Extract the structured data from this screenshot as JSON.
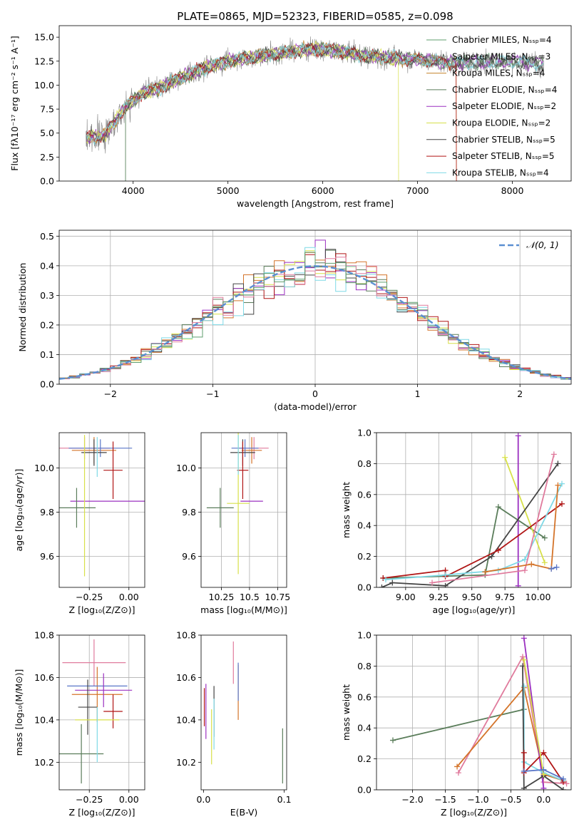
{
  "chart_data": [
    {
      "id": "spectrum",
      "type": "line",
      "title": "PLATE=0865, MJD=52323, FIBERID=0585, z=0.098",
      "xlabel": "wavelength [Angstrom, rest frame]",
      "ylabel": "Flux [fλ10⁻¹⁷ erg cm⁻² s⁻¹ A⁻¹]",
      "xlim": [
        3220,
        8620
      ],
      "ylim": [
        0,
        16.2
      ],
      "xticks": [
        4000,
        5000,
        6000,
        7000,
        8000
      ],
      "yticks": [
        0.0,
        2.5,
        5.0,
        7.5,
        10.0,
        12.5,
        15.0
      ],
      "legend_position": "right",
      "data_envelope": {
        "x": [
          3500,
          3700,
          3900,
          4100,
          4300,
          4500,
          4700,
          5000,
          5300,
          5600,
          5900,
          6200,
          6500,
          6800,
          7100,
          7400,
          7700,
          8000,
          8300
        ],
        "y": [
          4.5,
          4.8,
          7.5,
          9.2,
          9.8,
          10.8,
          11.6,
          12.5,
          13.0,
          13.4,
          13.8,
          13.5,
          13.0,
          12.8,
          12.6,
          12.3,
          12.4,
          12.5,
          12.2
        ]
      },
      "series": [
        {
          "name": "Chabrier MILES, N_SSP=4",
          "color": "#5f9e6e"
        },
        {
          "name": "Salpeter MILES, N_SSP=3",
          "color": "#999999"
        },
        {
          "name": "Kroupa MILES, N_SSP=4",
          "color": "#c5832c"
        },
        {
          "name": "Chabrier ELODIE, N_SSP=4",
          "color": "#5a7d5a"
        },
        {
          "name": "Salpeter ELODIE, N_SSP=2",
          "color": "#9b30c0"
        },
        {
          "name": "Kroupa ELODIE, N_SSP=2",
          "color": "#d7e04a"
        },
        {
          "name": "Chabrier STELIB, N_SSP=5",
          "color": "#444444"
        },
        {
          "name": "Salpeter STELIB, N_SSP=5",
          "color": "#b01515"
        },
        {
          "name": "Kroupa STELIB, N_SSP=4",
          "color": "#7fd9e6"
        }
      ]
    },
    {
      "id": "residuals",
      "type": "line",
      "xlabel": "(data-model)/error",
      "ylabel": "Normed distribution",
      "xlim": [
        -2.5,
        2.5
      ],
      "ylim": [
        0,
        0.52
      ],
      "xticks": [
        -2,
        -1,
        0,
        1,
        2
      ],
      "yticks": [
        0.0,
        0.1,
        0.2,
        0.3,
        0.4,
        0.5
      ],
      "grid": true,
      "legend": "𝒩(0, 1)",
      "legend_position": "top-right",
      "reference_curve": "normal(0,1)"
    },
    {
      "id": "age_vs_Z",
      "type": "scatter",
      "xlabel": "Z [log₁₀(Z/Z⊙)]",
      "ylabel": "age  [log₁₀(age/yr)]",
      "xlim": [
        -0.44,
        0.1
      ],
      "ylim": [
        9.46,
        10.16
      ],
      "xticks": [
        -0.25,
        0.0
      ],
      "xtick_labels": [
        "−0.25",
        "0.00"
      ],
      "yticks": [
        9.6,
        9.8,
        10.0
      ],
      "grid": true,
      "points": [
        {
          "x": -0.28,
          "y": 10.09,
          "xerr": 0.16,
          "yerr": 0.05,
          "color": "#e07b9d"
        },
        {
          "x": -0.22,
          "y": 10.08,
          "xerr": 0.14,
          "yerr": 0.06,
          "color": "#d4742a"
        },
        {
          "x": -0.18,
          "y": 10.09,
          "xerr": 0.2,
          "yerr": 0.04,
          "color": "#5a77c8"
        },
        {
          "x": -0.22,
          "y": 10.07,
          "xerr": 0.08,
          "yerr": 0.06,
          "color": "#444444"
        },
        {
          "x": -0.1,
          "y": 9.99,
          "xerr": 0.06,
          "yerr": 0.13,
          "color": "#b01515"
        },
        {
          "x": -0.12,
          "y": 9.85,
          "xerr": 0.25,
          "yerr": 0.0,
          "color": "#9b30c0"
        },
        {
          "x": -0.33,
          "y": 9.82,
          "xerr": 0.12,
          "yerr": 0.09,
          "color": "#5a7d5a"
        },
        {
          "x": -0.28,
          "y": 9.83,
          "xerr": 0.0,
          "yerr": 0.32,
          "color": "#d7e04a"
        },
        {
          "x": -0.2,
          "y": 10.05,
          "xerr": 0.0,
          "yerr": 0.09,
          "color": "#7fd9e6"
        }
      ]
    },
    {
      "id": "age_vs_mass",
      "type": "scatter",
      "xlabel": "mass [log₁₀(M/M⊙)]",
      "xlim": [
        10.07,
        10.83
      ],
      "ylim": [
        9.46,
        10.16
      ],
      "xticks": [
        10.25,
        10.5,
        10.75
      ],
      "yticks": [
        9.6,
        9.8,
        10.0
      ],
      "grid": true,
      "points": [
        {
          "x": 10.54,
          "y": 10.09,
          "xerr": 0.13,
          "yerr": 0.05,
          "color": "#e07b9d"
        },
        {
          "x": 10.52,
          "y": 10.08,
          "xerr": 0.09,
          "yerr": 0.06,
          "color": "#d4742a"
        },
        {
          "x": 10.46,
          "y": 10.09,
          "xerr": 0.12,
          "yerr": 0.04,
          "color": "#5a77c8"
        },
        {
          "x": 10.44,
          "y": 10.07,
          "xerr": 0.11,
          "yerr": 0.06,
          "color": "#444444"
        },
        {
          "x": 10.44,
          "y": 9.99,
          "xerr": 0.05,
          "yerr": 0.13,
          "color": "#b01515"
        },
        {
          "x": 10.52,
          "y": 9.85,
          "xerr": 0.1,
          "yerr": 0.0,
          "color": "#9b30c0"
        },
        {
          "x": 10.24,
          "y": 9.82,
          "xerr": 0.12,
          "yerr": 0.09,
          "color": "#5a7d5a"
        },
        {
          "x": 10.4,
          "y": 9.84,
          "xerr": 0.1,
          "yerr": 0.32,
          "color": "#d7e04a"
        },
        {
          "x": 10.4,
          "y": 10.06,
          "xerr": 0.0,
          "yerr": 0.09,
          "color": "#7fd9e6"
        }
      ]
    },
    {
      "id": "mass_weight_vs_age",
      "type": "line",
      "xlabel": "age  [log₁₀(age/yr)]",
      "ylabel": "mass weight",
      "xlim": [
        8.78,
        10.25
      ],
      "ylim": [
        0.0,
        1.0
      ],
      "xticks": [
        9.0,
        9.25,
        9.5,
        9.75,
        10.0
      ],
      "xtick_labels": [
        "9.00",
        "9.25",
        "9.50",
        "9.75",
        "10.00"
      ],
      "yticks": [
        0.0,
        0.2,
        0.4,
        0.6,
        0.8,
        1.0
      ],
      "grid": true,
      "series": [
        {
          "color": "#5a7d5a",
          "x": [
            8.83,
            9.6,
            9.7,
            10.05
          ],
          "y": [
            0.06,
            0.08,
            0.52,
            0.32
          ]
        },
        {
          "color": "#9b30c0",
          "x": [
            9.85,
            9.85
          ],
          "y": [
            0.01,
            0.98
          ]
        },
        {
          "color": "#d7e04a",
          "x": [
            9.75,
            10.05
          ],
          "y": [
            0.84,
            0.16
          ]
        },
        {
          "color": "#444444",
          "x": [
            8.82,
            8.9,
            9.3,
            9.65,
            10.15
          ],
          "y": [
            0.0,
            0.03,
            0.01,
            0.2,
            0.8
          ]
        },
        {
          "color": "#b01515",
          "x": [
            8.83,
            9.3,
            9.3,
            9.7,
            10.18
          ],
          "y": [
            0.06,
            0.11,
            0.07,
            0.24,
            0.54
          ]
        },
        {
          "color": "#7fd9e6",
          "x": [
            8.85,
            9.3,
            9.7,
            9.9,
            10.18
          ],
          "y": [
            0.05,
            0.08,
            0.11,
            0.18,
            0.67
          ]
        },
        {
          "color": "#e07b9d",
          "x": [
            9.2,
            9.9,
            10.12
          ],
          "y": [
            0.03,
            0.11,
            0.86
          ]
        },
        {
          "color": "#d4742a",
          "x": [
            9.6,
            9.95,
            10.1,
            10.15
          ],
          "y": [
            0.1,
            0.15,
            0.12,
            0.66
          ]
        },
        {
          "color": "#5a77c8",
          "x": [
            10.1,
            10.14
          ],
          "y": [
            0.12,
            0.13
          ]
        }
      ]
    },
    {
      "id": "mass_vs_Z",
      "type": "scatter",
      "xlabel": "Z [log₁₀(Z/Z⊙)]",
      "ylabel": "mass [log₁₀(M/M⊙)]",
      "xlim": [
        -0.44,
        0.1
      ],
      "ylim": [
        10.07,
        10.8
      ],
      "xticks": [
        -0.25,
        0.0
      ],
      "xtick_labels": [
        "−0.25",
        "0.00"
      ],
      "yticks": [
        10.2,
        10.4,
        10.6,
        10.8
      ],
      "grid": true,
      "points": [
        {
          "x": -0.22,
          "y": 10.67,
          "xerr": 0.2,
          "yerr": 0.11,
          "color": "#e07b9d"
        },
        {
          "x": -0.2,
          "y": 10.52,
          "xerr": 0.16,
          "yerr": 0.13,
          "color": "#d4742a"
        },
        {
          "x": -0.2,
          "y": 10.56,
          "xerr": 0.19,
          "yerr": 0.0,
          "color": "#5a77c8"
        },
        {
          "x": -0.16,
          "y": 10.54,
          "xerr": 0.18,
          "yerr": 0.08,
          "color": "#9b30c0"
        },
        {
          "x": -0.26,
          "y": 10.46,
          "xerr": 0.06,
          "yerr": 0.13,
          "color": "#444444"
        },
        {
          "x": -0.1,
          "y": 10.44,
          "xerr": 0.06,
          "yerr": 0.08,
          "color": "#b01515"
        },
        {
          "x": -0.3,
          "y": 10.24,
          "xerr": 0.14,
          "yerr": 0.14,
          "color": "#5a7d5a"
        },
        {
          "x": -0.2,
          "y": 10.4,
          "xerr": 0.14,
          "yerr": 0.0,
          "color": "#d7e04a"
        },
        {
          "x": -0.2,
          "y": 10.33,
          "xerr": 0.0,
          "yerr": 0.13,
          "color": "#7fd9e6"
        }
      ]
    },
    {
      "id": "mass_vs_EBV",
      "type": "scatter",
      "xlabel": "E(B-V)",
      "xlim": [
        -0.003,
        0.103
      ],
      "ylim": [
        10.07,
        10.8
      ],
      "xticks": [
        0.0,
        0.1
      ],
      "xtick_labels": [
        "0.0",
        "0.1"
      ],
      "yticks": [
        10.2,
        10.4,
        10.6,
        10.8
      ],
      "grid": false,
      "points": [
        {
          "x": 0.037,
          "y": 10.67,
          "yerr": 0.1,
          "color": "#e07b9d"
        },
        {
          "x": 0.043,
          "y": 10.53,
          "yerr": 0.13,
          "color": "#d4742a"
        },
        {
          "x": 0.043,
          "y": 10.58,
          "yerr": 0.09,
          "color": "#5a77c8"
        },
        {
          "x": 0.003,
          "y": 10.44,
          "yerr": 0.13,
          "color": "#9b30c0"
        },
        {
          "x": 0.013,
          "y": 10.44,
          "yerr": 0.12,
          "color": "#444444"
        },
        {
          "x": 0.001,
          "y": 10.46,
          "yerr": 0.09,
          "color": "#b01515"
        },
        {
          "x": 0.098,
          "y": 10.23,
          "yerr": 0.13,
          "color": "#5a7d5a"
        },
        {
          "x": 0.01,
          "y": 10.32,
          "yerr": 0.13,
          "color": "#d7e04a"
        },
        {
          "x": 0.013,
          "y": 10.38,
          "yerr": 0.12,
          "color": "#7fd9e6"
        }
      ]
    },
    {
      "id": "mass_weight_vs_Z",
      "type": "line",
      "xlabel": "Z [log₁₀(Z/Z⊙)]",
      "ylabel": "mass weight",
      "xlim": [
        -2.55,
        0.42
      ],
      "ylim": [
        0.0,
        1.0
      ],
      "xticks": [
        -2.0,
        -1.5,
        -1.0,
        -0.5,
        0.0
      ],
      "xtick_labels": [
        "−2.0",
        "−1.5",
        "−1.0",
        "−0.5",
        "0.0"
      ],
      "yticks": [
        0.0,
        0.2,
        0.4,
        0.6,
        0.8,
        1.0
      ],
      "grid": true,
      "series": [
        {
          "color": "#5a7d5a",
          "x": [
            -2.3,
            -0.3
          ],
          "y": [
            0.32,
            0.52
          ]
        },
        {
          "color": "#e07b9d",
          "x": [
            -1.3,
            -0.32,
            0.0,
            0.35
          ],
          "y": [
            0.11,
            0.86,
            0.05,
            0.04
          ]
        },
        {
          "color": "#d4742a",
          "x": [
            -1.32,
            -0.3,
            0.0,
            0.3
          ],
          "y": [
            0.15,
            0.66,
            0.1,
            0.06
          ]
        },
        {
          "color": "#9b30c0",
          "x": [
            -0.3,
            0.0
          ],
          "y": [
            0.98,
            0.01
          ]
        },
        {
          "color": "#7fd9e6",
          "x": [
            -0.3,
            -0.3,
            0.0,
            0.3
          ],
          "y": [
            0.67,
            0.18,
            0.11,
            0.06
          ]
        },
        {
          "color": "#444444",
          "x": [
            -0.32,
            -0.3,
            0.0,
            0.3
          ],
          "y": [
            0.8,
            0.01,
            0.09,
            0.0
          ]
        },
        {
          "color": "#b01515",
          "x": [
            -0.3,
            -0.3,
            0.0,
            0.3
          ],
          "y": [
            0.24,
            0.11,
            0.24,
            0.05
          ]
        },
        {
          "color": "#d7e04a",
          "x": [
            -0.3,
            0.0
          ],
          "y": [
            0.84,
            0.1
          ]
        },
        {
          "color": "#5a77c8",
          "x": [
            -0.3,
            0.0,
            0.3
          ],
          "y": [
            0.12,
            0.13,
            0.07
          ]
        }
      ]
    }
  ]
}
